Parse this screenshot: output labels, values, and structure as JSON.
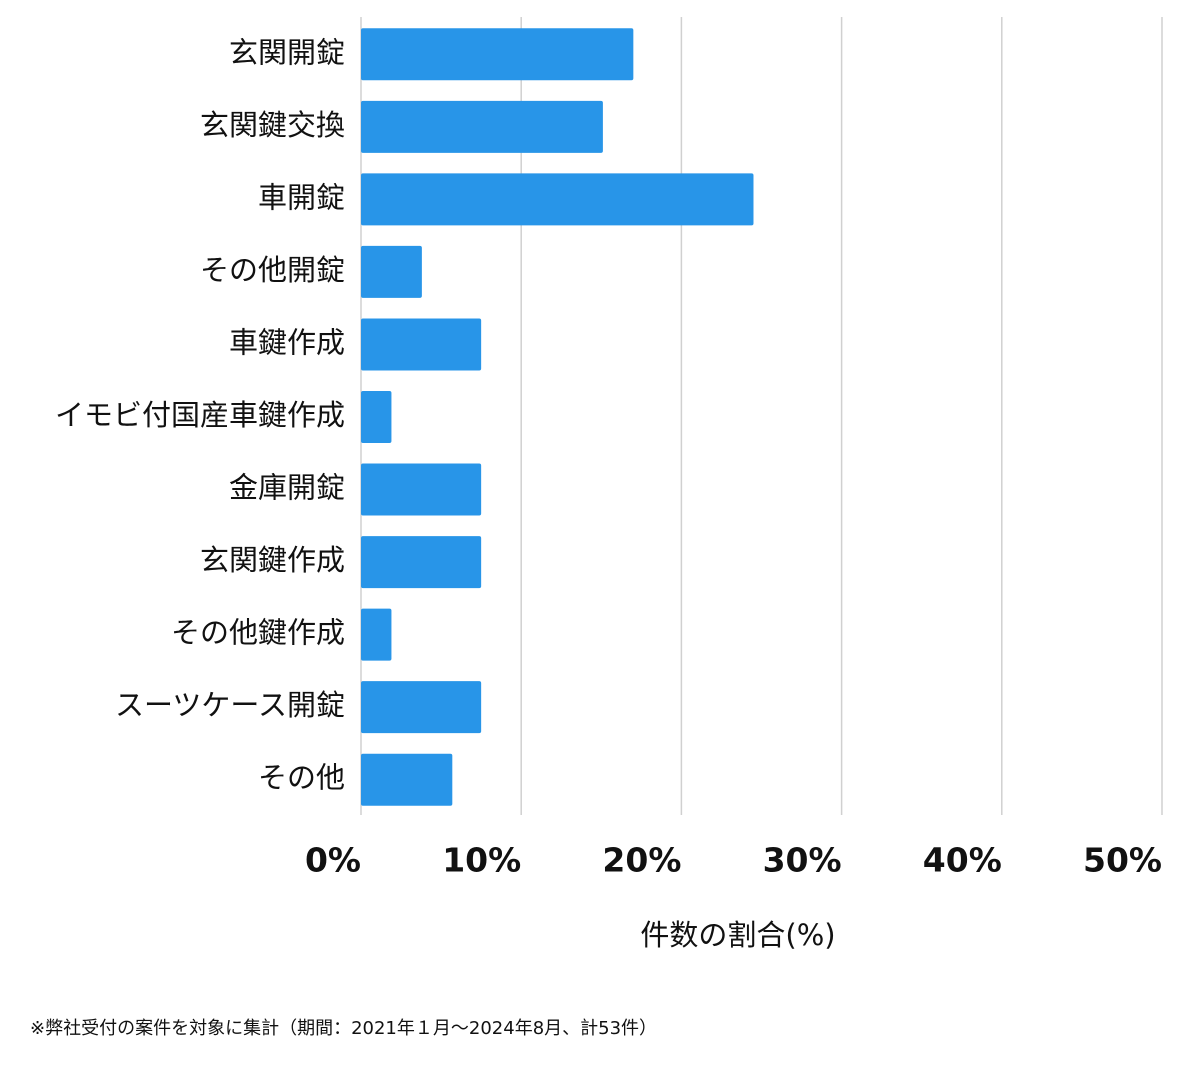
{
  "chart_data": {
    "type": "barh",
    "categories": [
      "玄関開錠",
      "玄関鍵交換",
      "車開錠",
      "その他開錠",
      "車鍵作成",
      "イモビ付国産車鍵作成",
      "金庫開錠",
      "玄関鍵作成",
      "その他鍵作成",
      "スーツケース開錠",
      "その他"
    ],
    "values": [
      17.0,
      15.1,
      24.5,
      3.8,
      7.5,
      1.9,
      7.5,
      7.5,
      1.9,
      7.5,
      5.7
    ],
    "color": "#2895e8",
    "xlim": [
      0,
      50
    ],
    "xticks": [
      {
        "value": 0,
        "label": "0%"
      },
      {
        "value": 10,
        "label": "10%"
      },
      {
        "value": 20,
        "label": "20%"
      },
      {
        "value": 30,
        "label": "30%"
      },
      {
        "value": 40,
        "label": "40%"
      },
      {
        "value": 50,
        "label": "50%"
      }
    ],
    "grid": true,
    "x_label": "件数の割合(%)",
    "footnote": "※弊社受付の案件を対象に集計（期間：2021年１月〜2024年8月、計53件）"
  }
}
